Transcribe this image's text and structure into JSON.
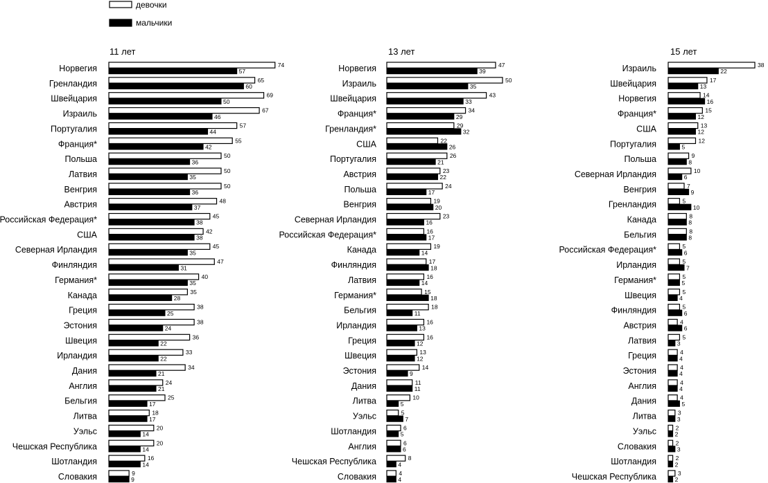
{
  "chart_data": {
    "type": "bar",
    "orientation": "horizontal",
    "legend": [
      {
        "name": "девочки",
        "color": "#ffffff"
      },
      {
        "name": "мальчики",
        "color": "#000000"
      }
    ],
    "legend_position": "top-left",
    "panels": [
      {
        "title": "11 лет",
        "categories": [
          "Норвегия",
          "Гренландия",
          "Швейцария",
          "Израиль",
          "Португалия",
          "Франция*",
          "Польша",
          "Латвия",
          "Венгрия",
          "Австрия",
          "Российская Федерация*",
          "США",
          "Северная Ирландия",
          "Финляндия",
          "Германия*",
          "Канада",
          "Греция",
          "Эстония",
          "Швеция",
          "Ирландия",
          "Дания",
          "Англия",
          "Бельгия",
          "Литва",
          "Уэльс",
          "Чешская Республика",
          "Шотландия",
          "Словакия"
        ],
        "series": [
          {
            "name": "девочки",
            "values": [
              74,
              65,
              69,
              67,
              57,
              55,
              50,
              50,
              50,
              48,
              45,
              42,
              45,
              47,
              40,
              35,
              38,
              38,
              36,
              33,
              34,
              24,
              25,
              18,
              20,
              20,
              16,
              9
            ]
          },
          {
            "name": "мальчики",
            "values": [
              57,
              60,
              50,
              46,
              44,
              42,
              36,
              35,
              36,
              37,
              38,
              38,
              35,
              31,
              35,
              28,
              25,
              24,
              22,
              22,
              21,
              21,
              17,
              17,
              14,
              14,
              14,
              9
            ]
          }
        ]
      },
      {
        "title": "13 лет",
        "categories": [
          "Норвегия",
          "Израиль",
          "Швейцария",
          "Франция*",
          "Гренландия*",
          "США",
          "Португалия",
          "Австрия",
          "Польша",
          "Венгрия",
          "Северная Ирландия",
          "Российская Федерация*",
          "Канада",
          "Финляндия",
          "Латвия",
          "Германия*",
          "Бельгия",
          "Ирландия",
          "Греция",
          "Швеция",
          "Эстония",
          "Дания",
          "Литва",
          "Уэльс",
          "Шотландия",
          "Англия",
          "Чешская Республика",
          "Словакия"
        ],
        "series": [
          {
            "name": "девочки",
            "values": [
              47,
              50,
              43,
              34,
              29,
              22,
              26,
              23,
              24,
              19,
              23,
              16,
              19,
              17,
              16,
              15,
              18,
              16,
              16,
              13,
              14,
              11,
              10,
              5,
              6,
              6,
              8,
              4
            ]
          },
          {
            "name": "мальчики",
            "values": [
              39,
              35,
              33,
              29,
              32,
              26,
              21,
              22,
              17,
              20,
              16,
              17,
              14,
              18,
              14,
              18,
              11,
              13,
              12,
              12,
              9,
              11,
              5,
              7,
              5,
              6,
              4,
              4
            ]
          }
        ]
      },
      {
        "title": "15 лет",
        "categories": [
          "Израиль",
          "Швейцария",
          "Норвегия",
          "Франция*",
          "США",
          "Португалия",
          "Польша",
          "Северная Ирландия",
          "Венгрия",
          "Гренландия",
          "Канада",
          "Бельгия",
          "Российская Федерация*",
          "Ирландия",
          "Германия*",
          "Швеция",
          "Финляндия",
          "Австрия",
          "Латвия",
          "Греция",
          "Эстония",
          "Англия",
          "Дания",
          "Литва",
          "Уэльс",
          "Словакия",
          "Шотландия",
          "Чешская Республика"
        ],
        "series": [
          {
            "name": "девочки",
            "values": [
              38,
              17,
              14,
              15,
              13,
              12,
              9,
              10,
              7,
              5,
              8,
              8,
              5,
              5,
              5,
              5,
              5,
              4,
              5,
              4,
              4,
              4,
              4,
              3,
              2,
              2,
              2,
              3
            ]
          },
          {
            "name": "мальчики",
            "values": [
              22,
              13,
              16,
              12,
              12,
              5,
              8,
              6,
              9,
              10,
              8,
              8,
              6,
              7,
              5,
              4,
              6,
              6,
              3,
              4,
              4,
              4,
              5,
              3,
              2,
              3,
              2,
              2
            ]
          }
        ]
      }
    ]
  }
}
